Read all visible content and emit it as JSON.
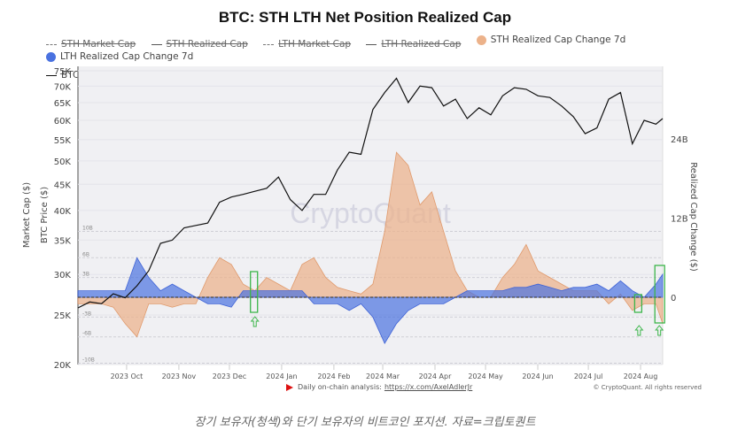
{
  "caption": "장기 보유자(청색)와 단기 보유자의 비트코인 포지션. 자료=크립토퀀트",
  "footer": {
    "source_prefix": "Daily on-chain analysis:",
    "source_link": "https://x.com/AxelAdlerJr",
    "copyright": "© CryptoQuant. All rights reserved",
    "flag_icon": "red-flag"
  },
  "legend": [
    {
      "label": "STH Market Cap",
      "style": "dash-dot",
      "enabled": false
    },
    {
      "label": "STH Realized Cap",
      "style": "line",
      "enabled": false
    },
    {
      "label": "LTH Market Cap",
      "style": "dash",
      "enabled": false
    },
    {
      "label": "LTH Realized Cap",
      "style": "line",
      "enabled": false
    },
    {
      "label": "STH Realized Cap Change 7d",
      "style": "dot",
      "color": "#ecb28a",
      "enabled": true
    },
    {
      "label": "LTH Realized Cap Change 7d",
      "style": "dot",
      "color": "#4a72e0",
      "enabled": true
    },
    {
      "label": "BTC Price [USD]",
      "style": "line",
      "color": "#111111",
      "enabled": true
    }
  ],
  "chart_data": {
    "type": "area",
    "title": "BTC: STH LTH Net Position Realized Cap",
    "watermark": "CryptoQuant",
    "xlabel": "",
    "ylabel_left_outer": "Market Cap ($)",
    "ylabel_left_inner": "BTC Price ($)",
    "ylabel_right": "Realized Cap Change ($)",
    "x_ticks": [
      "2023 Oct",
      "2023 Nov",
      "2023 Dec",
      "2024 Jan",
      "2024 Feb",
      "2024 Mar",
      "2024 Apr",
      "2024 May",
      "2024 Jun",
      "2024 Jul",
      "2024 Aug"
    ],
    "x_range": [
      "2023-09-10",
      "2024-08-22"
    ],
    "y_left": {
      "scale": "log",
      "range": [
        20000,
        75000
      ],
      "ticks": [
        "20K",
        "25K",
        "30K",
        "35K",
        "40K",
        "45K",
        "50K",
        "55K",
        "60K",
        "65K",
        "70K",
        "75K"
      ],
      "tick_values": [
        20000,
        25000,
        30000,
        35000,
        40000,
        45000,
        50000,
        55000,
        60000,
        65000,
        70000,
        75000
      ]
    },
    "y_right": {
      "range_billions": [
        -10,
        24
      ],
      "ticks": [
        "0",
        "12B",
        "24B"
      ],
      "tick_values": [
        0,
        12,
        24
      ]
    },
    "y_inner_ticks": {
      "labels": [
        "10B",
        "6B",
        "3B",
        "-3B",
        "-6B",
        "-10B"
      ],
      "values": [
        10,
        6,
        3,
        -3,
        -6,
        -10
      ]
    },
    "grid": true,
    "legend_position": "top",
    "dates_week": [
      "2023-09-10",
      "2023-09-17",
      "2023-09-24",
      "2023-10-01",
      "2023-10-08",
      "2023-10-15",
      "2023-10-22",
      "2023-10-29",
      "2023-11-05",
      "2023-11-12",
      "2023-11-19",
      "2023-11-26",
      "2023-12-03",
      "2023-12-10",
      "2023-12-17",
      "2023-12-24",
      "2023-12-31",
      "2024-01-07",
      "2024-01-14",
      "2024-01-21",
      "2024-01-28",
      "2024-02-04",
      "2024-02-11",
      "2024-02-18",
      "2024-02-25",
      "2024-03-03",
      "2024-03-10",
      "2024-03-17",
      "2024-03-24",
      "2024-03-31",
      "2024-04-07",
      "2024-04-14",
      "2024-04-21",
      "2024-04-28",
      "2024-05-05",
      "2024-05-12",
      "2024-05-19",
      "2024-05-26",
      "2024-06-02",
      "2024-06-09",
      "2024-06-16",
      "2024-06-23",
      "2024-06-30",
      "2024-07-07",
      "2024-07-14",
      "2024-07-21",
      "2024-07-28",
      "2024-08-04",
      "2024-08-11",
      "2024-08-18",
      "2024-08-22"
    ],
    "series": [
      {
        "name": "BTC Price [USD]",
        "axis": "left",
        "color": "#111111",
        "values": [
          25800,
          26500,
          26300,
          27500,
          27000,
          28500,
          30500,
          34500,
          35000,
          37000,
          37400,
          37800,
          41500,
          42500,
          43000,
          43600,
          44200,
          46500,
          42000,
          40000,
          43000,
          43000,
          48000,
          52000,
          51500,
          63000,
          68000,
          72500,
          65000,
          70000,
          69500,
          64000,
          66000,
          60500,
          63500,
          61500,
          67000,
          69500,
          69000,
          67000,
          66500,
          64000,
          61000,
          56500,
          58000,
          66000,
          68000,
          54000,
          60000,
          59000,
          60500
        ]
      },
      {
        "name": "STH Realized Cap Change 7d",
        "axis": "right",
        "unit": "B USD",
        "color": "#ecb28a",
        "values": [
          -1,
          -1,
          -1,
          -1.5,
          -4,
          -6,
          -1,
          -1,
          -1.5,
          -1,
          -1,
          3,
          6,
          5,
          2,
          1,
          3,
          2,
          1,
          5,
          6,
          3,
          1.5,
          1,
          0.5,
          2,
          10,
          22,
          20,
          14,
          16,
          10,
          4,
          1,
          0,
          0,
          3,
          5,
          8,
          4,
          3,
          2,
          1,
          1,
          1,
          -1,
          0.5,
          -2,
          -1,
          -1,
          -4
        ]
      },
      {
        "name": "LTH Realized Cap Change 7d",
        "axis": "right",
        "unit": "B USD",
        "color": "#4a72e0",
        "values": [
          1,
          1,
          1,
          1,
          1,
          6,
          3,
          1,
          2,
          1,
          0,
          -1,
          -1,
          -1.5,
          1,
          1,
          1,
          1,
          1,
          1,
          -1,
          -1,
          -1,
          -2,
          -1,
          -3,
          -7,
          -4,
          -2,
          -1,
          -1,
          -1,
          0,
          1,
          1,
          1,
          1,
          1.5,
          1.5,
          2,
          1.5,
          1,
          1.5,
          1.5,
          2,
          1,
          2.5,
          1,
          0,
          2,
          3.5
        ]
      }
    ],
    "annotations": [
      {
        "type": "box",
        "label": "highlight",
        "date": "2023-12-24",
        "color": "#3cb54a"
      },
      {
        "type": "arrow-up",
        "date": "2023-12-24",
        "color": "#3cb54a"
      },
      {
        "type": "box",
        "label": "highlight",
        "date": "2024-08-08",
        "color": "#3cb54a"
      },
      {
        "type": "arrow-up",
        "date": "2024-08-08",
        "color": "#3cb54a"
      },
      {
        "type": "box",
        "label": "highlight",
        "date": "2024-08-20",
        "color": "#3cb54a"
      },
      {
        "type": "arrow-up",
        "date": "2024-08-20",
        "color": "#3cb54a"
      }
    ]
  }
}
